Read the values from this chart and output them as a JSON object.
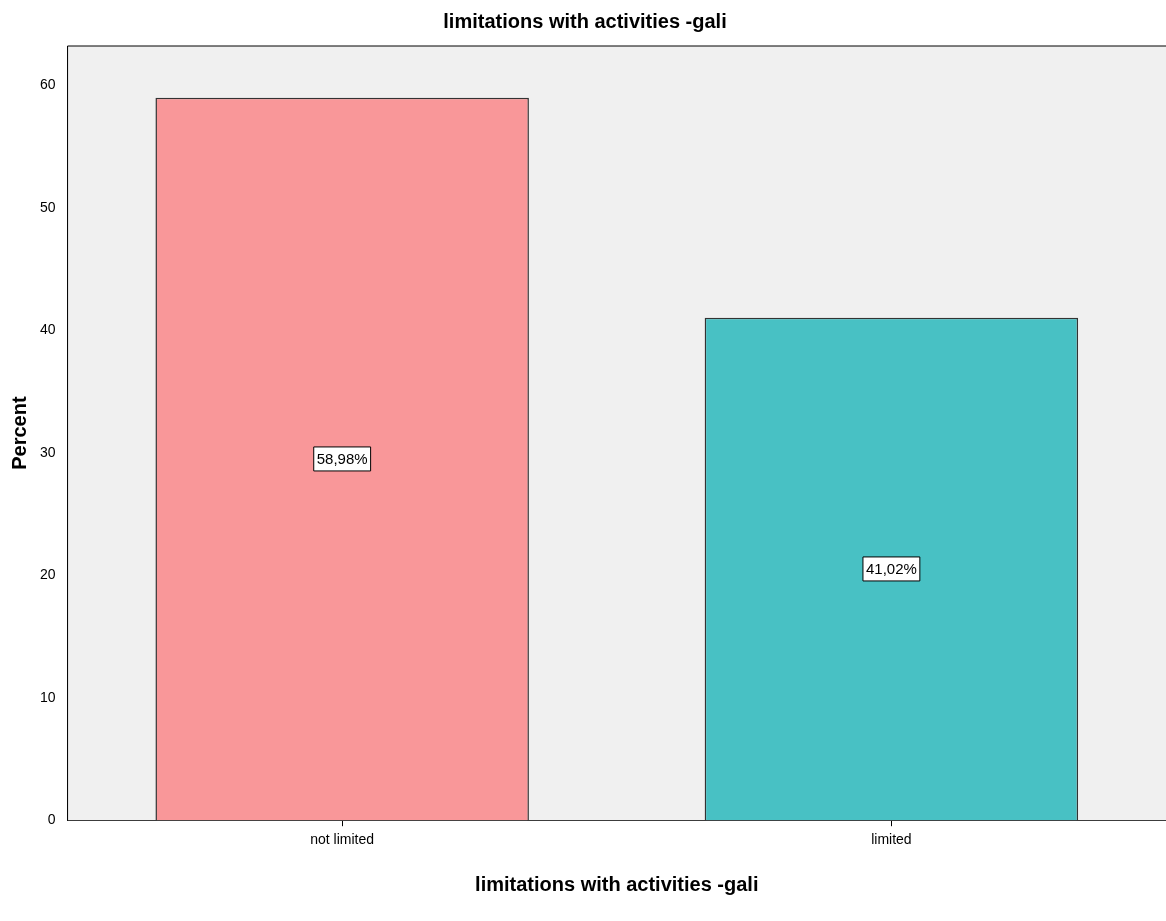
{
  "chart_data": {
    "type": "bar",
    "title": "limitations with activities -gali",
    "xlabel": "limitations with activities -gali",
    "ylabel": "Percent",
    "categories": [
      "not limited",
      "limited"
    ],
    "values": [
      58.98,
      41.02
    ],
    "colors": [
      "#f99799",
      "#48c1c4"
    ],
    "value_labels": [
      "58,98%",
      "41,02%"
    ],
    "ylim": [
      0,
      63.2
    ],
    "yticks": [
      0,
      10,
      20,
      30,
      40,
      50,
      60
    ],
    "grid": false,
    "legend": false
  }
}
